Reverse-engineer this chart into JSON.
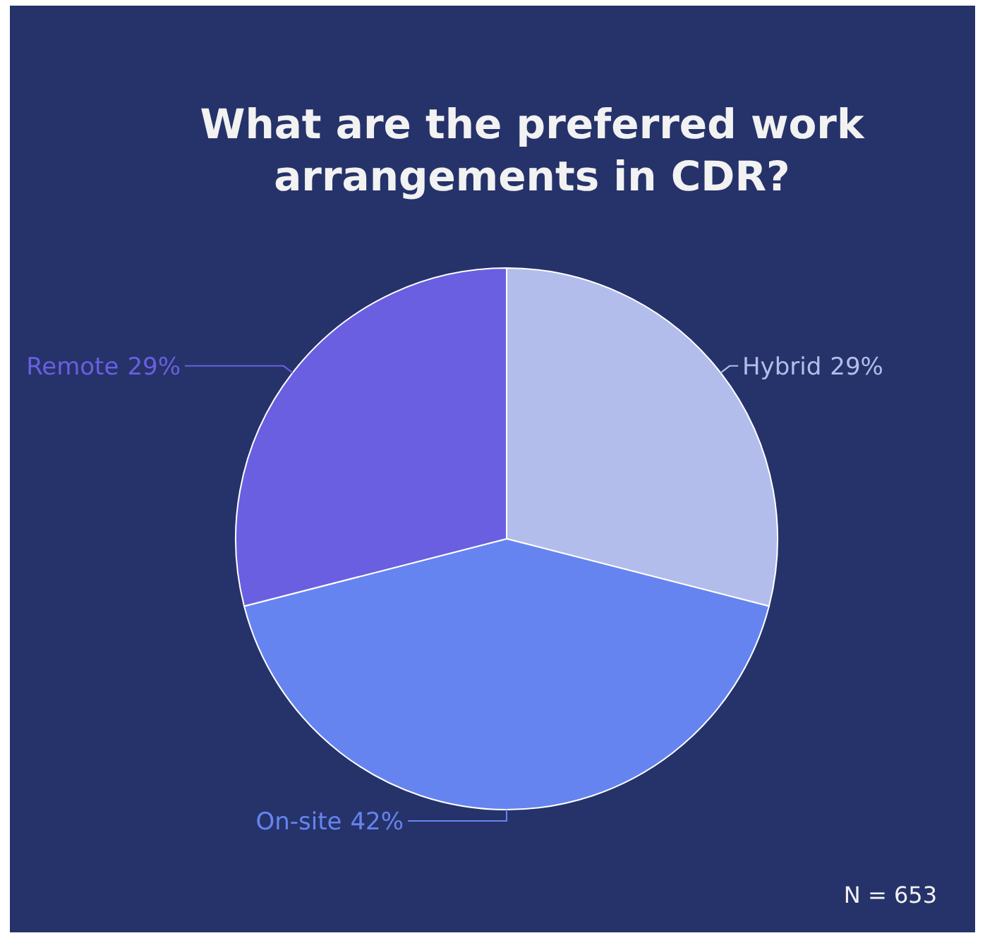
{
  "chart_data": {
    "type": "pie",
    "title": "What are the preferred work arrangements in CDR?",
    "categories": [
      "Hybrid",
      "On-site",
      "Remote"
    ],
    "values": [
      29,
      42,
      29
    ],
    "colors": [
      "#b3bdec",
      "#6684f0",
      "#6a5fe0"
    ],
    "value_labels": [
      "29%",
      "42%",
      "29%"
    ],
    "annotations": [
      "N = 653"
    ]
  }
}
